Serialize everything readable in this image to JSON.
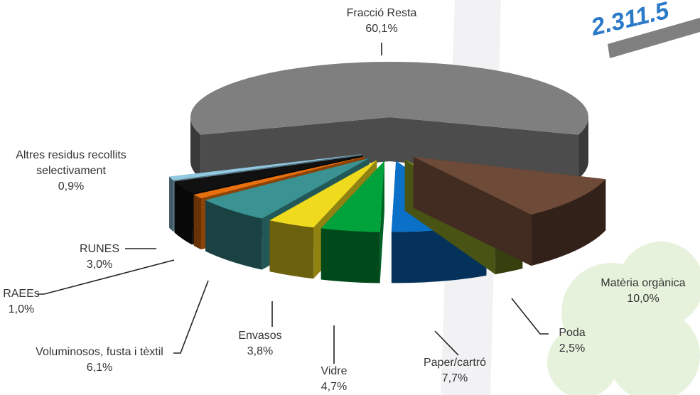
{
  "chart_data": {
    "type": "pie",
    "three_d": true,
    "exploded": true,
    "categories": [
      "Fracció Resta",
      "Matèria orgànica",
      "Poda",
      "Paper/cartró",
      "Vidre",
      "Envasos",
      "Voluminosos, fusta i tèxtil",
      "RAEEs",
      "RUNES",
      "Altres residus recollits selectivament"
    ],
    "values": [
      60.1,
      10.0,
      2.5,
      7.7,
      4.7,
      3.8,
      6.1,
      1.0,
      3.0,
      0.9
    ],
    "value_labels": [
      "60,1%",
      "10,0%",
      "2,5%",
      "7,7%",
      "4,7%",
      "3,8%",
      "6,1%",
      "1,0%",
      "3,0%",
      "0,9%"
    ],
    "colors": [
      "#7f7f7f",
      "#6e4a38",
      "#7a8c22",
      "#0a70c8",
      "#00a23c",
      "#f0da1e",
      "#3a9292",
      "#e8700e",
      "#111111",
      "#92c8e0"
    ],
    "annotation": "2.311.5"
  }
}
